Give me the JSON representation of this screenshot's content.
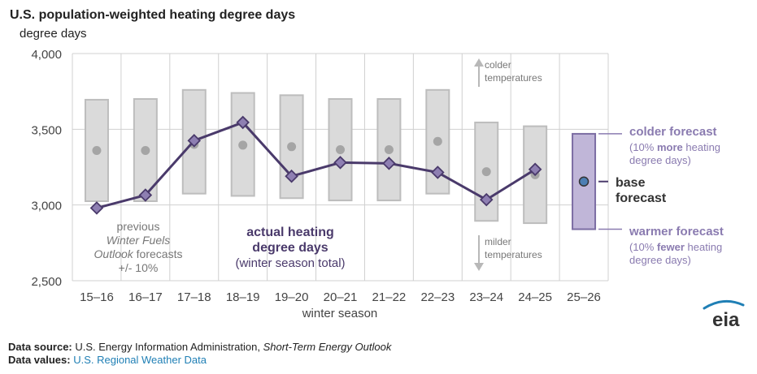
{
  "chart_data": {
    "type": "line",
    "title": "U.S. population-weighted heating degree days",
    "ylabel": "degree days",
    "xlabel": "winter season",
    "ylim": [
      2500,
      4000
    ],
    "yticks": [
      2500,
      3000,
      3500,
      4000
    ],
    "ytick_labels": [
      "2,500",
      "3,000",
      "3,500",
      "4,000"
    ],
    "categories": [
      "15–16",
      "16–17",
      "17–18",
      "18–19",
      "19–20",
      "20–21",
      "21–22",
      "22–23",
      "23–24",
      "24–25",
      "25–26"
    ],
    "series": [
      {
        "name": "previous Winter Fuels Outlook forecasts +/- 10%",
        "type": "range",
        "low": [
          3025,
          3025,
          3075,
          3060,
          3045,
          3030,
          3030,
          3075,
          2895,
          2880,
          null
        ],
        "high": [
          3695,
          3700,
          3760,
          3740,
          3725,
          3700,
          3700,
          3760,
          3545,
          3520,
          null
        ],
        "mid": [
          3360,
          3360,
          3400,
          3395,
          3385,
          3365,
          3365,
          3420,
          3220,
          3200,
          null
        ]
      },
      {
        "name": "actual heating degree days (winter season total)",
        "type": "line",
        "values": [
          2980,
          3065,
          3425,
          3545,
          3190,
          3280,
          3275,
          3215,
          3035,
          3235,
          null
        ]
      },
      {
        "name": "2025–26 forecast",
        "type": "range",
        "category": "25–26",
        "low": 2840,
        "high": 3470,
        "base": 3155
      }
    ],
    "annotations": {
      "previous": [
        "previous",
        "Winter Fuels",
        "Outlook forecasts",
        "+/- 10%"
      ],
      "actual": [
        "actual heating",
        "degree days",
        "(winter season total)"
      ],
      "colder_temps": [
        "colder",
        "temperatures"
      ],
      "milder_temps": [
        "milder",
        "temperatures"
      ],
      "colder_forecast": {
        "title": "colder forecast",
        "line1_pre": "(10% ",
        "line1_bold": "more",
        "line1_post": " heating",
        "line2": "degree days)"
      },
      "base_forecast": [
        "base",
        "forecast"
      ],
      "warmer_forecast": {
        "title": "warmer forecast",
        "line1_pre": "(10% ",
        "line1_bold": "fewer",
        "line1_post": " heating",
        "line2": "degree days)"
      }
    },
    "grid": true,
    "colors": {
      "box_fill": "#dadada",
      "box_stroke": "#bdbdbd",
      "dot": "#a5a5a5",
      "line": "#4a3a6b",
      "marker": "#8e7fb2",
      "forecast_fill": "#c0b6d8",
      "forecast_stroke": "#7c6da3",
      "base_dot": "#4d7fb3",
      "accent": "#8a7bb0",
      "grid": "#d0d0d0",
      "arrow": "#b8b8b8"
    }
  },
  "logo_text": "eia",
  "footer": {
    "source_label": "Data source:",
    "source_text": " U.S. Energy Information Administration, ",
    "source_italic": "Short-Term Energy Outlook",
    "values_label": "Data values:",
    "values_link": " U.S. Regional Weather Data"
  }
}
